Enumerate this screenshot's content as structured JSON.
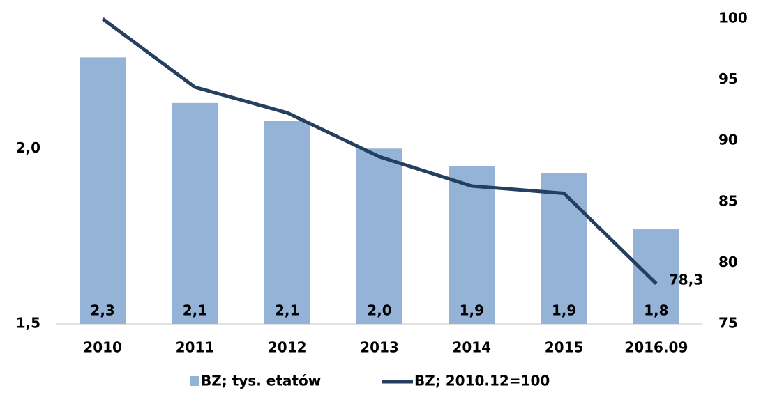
{
  "chart_data": {
    "type": "bar-line",
    "categories": [
      "2010",
      "2011",
      "2012",
      "2013",
      "2014",
      "2015",
      "2016.09"
    ],
    "series": [
      {
        "name": "BZ; tys. etatów",
        "type": "bar",
        "color": "#95b3d7",
        "values": [
          2.26,
          2.13,
          2.08,
          2.0,
          1.95,
          1.93,
          1.77
        ],
        "value_labels": [
          "2,3",
          "2,1",
          "2,1",
          "2,0",
          "1,9",
          "1,9",
          "1,8"
        ]
      },
      {
        "name": "BZ; 2010.12=100",
        "type": "line",
        "axis": "y2",
        "color": "#243f60",
        "values": [
          100,
          94.4,
          92.3,
          88.7,
          86.3,
          85.7,
          78.3
        ],
        "value_labels": [
          null,
          null,
          null,
          null,
          null,
          null,
          "78,3"
        ]
      }
    ],
    "ylim": [
      1.5,
      2.37
    ],
    "yticks": [
      {
        "value": 1.5,
        "label": "1,5"
      },
      {
        "value": 2.0,
        "label": "2,0"
      }
    ],
    "y2lim": [
      75,
      100
    ],
    "y2ticks": [
      75,
      80,
      85,
      90,
      95,
      100
    ],
    "legend": "bottom"
  }
}
